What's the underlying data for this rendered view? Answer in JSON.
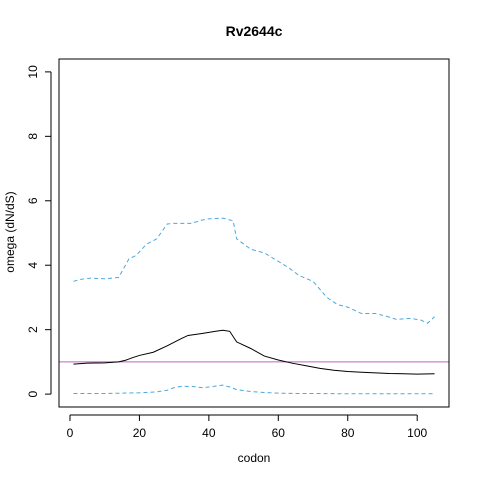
{
  "chart_data": {
    "type": "line",
    "title": "Rv2644c",
    "xlabel": "codon",
    "ylabel": "omega (dN/dS)",
    "xlim": [
      1,
      105
    ],
    "ylim": [
      0,
      10
    ],
    "xticks": [
      0,
      20,
      40,
      60,
      80,
      100
    ],
    "yticks": [
      0,
      2,
      4,
      6,
      8,
      10
    ],
    "reference_line": {
      "y": 1,
      "color": "#c060c0"
    },
    "grid": false,
    "series": [
      {
        "role": "estimate",
        "color": "#000000",
        "dash": "solid",
        "x": [
          1,
          5,
          10,
          14,
          16,
          18,
          20,
          24,
          28,
          32,
          34,
          38,
          42,
          44,
          46,
          48,
          52,
          56,
          60,
          64,
          68,
          72,
          76,
          80,
          84,
          88,
          92,
          96,
          100,
          105
        ],
        "y": [
          0.93,
          0.96,
          0.97,
          1.0,
          1.05,
          1.13,
          1.2,
          1.3,
          1.5,
          1.72,
          1.82,
          1.88,
          1.95,
          1.98,
          1.95,
          1.62,
          1.42,
          1.18,
          1.06,
          0.96,
          0.88,
          0.8,
          0.74,
          0.7,
          0.68,
          0.66,
          0.64,
          0.63,
          0.62,
          0.63
        ]
      },
      {
        "role": "upper-bound",
        "color": "#4aa8e0",
        "dash": "dashed",
        "x": [
          1,
          3,
          6,
          10,
          14,
          17,
          19,
          22,
          25,
          28,
          30,
          35,
          38,
          40,
          44,
          47,
          48,
          52,
          56,
          60,
          63,
          66,
          70,
          74,
          77,
          80,
          84,
          88,
          91,
          94,
          98,
          101,
          103,
          105
        ],
        "y": [
          3.5,
          3.56,
          3.6,
          3.58,
          3.62,
          4.2,
          4.3,
          4.65,
          4.82,
          5.28,
          5.3,
          5.3,
          5.4,
          5.44,
          5.46,
          5.38,
          4.82,
          4.5,
          4.38,
          4.12,
          3.92,
          3.68,
          3.5,
          3.0,
          2.78,
          2.7,
          2.5,
          2.5,
          2.42,
          2.32,
          2.35,
          2.3,
          2.2,
          2.4
        ]
      },
      {
        "role": "lower-bound",
        "color": "#4aa8e0",
        "dash": "dashed",
        "x": [
          1,
          5,
          10,
          15,
          20,
          25,
          28,
          30,
          32,
          35,
          38,
          40,
          44,
          46,
          48,
          52,
          56,
          60,
          65,
          70,
          80,
          90,
          105
        ],
        "y": [
          0.02,
          0.02,
          0.02,
          0.03,
          0.04,
          0.07,
          0.12,
          0.2,
          0.24,
          0.24,
          0.2,
          0.22,
          0.28,
          0.22,
          0.14,
          0.08,
          0.05,
          0.03,
          0.02,
          0.02,
          0.01,
          0.01,
          0.01
        ]
      }
    ]
  }
}
